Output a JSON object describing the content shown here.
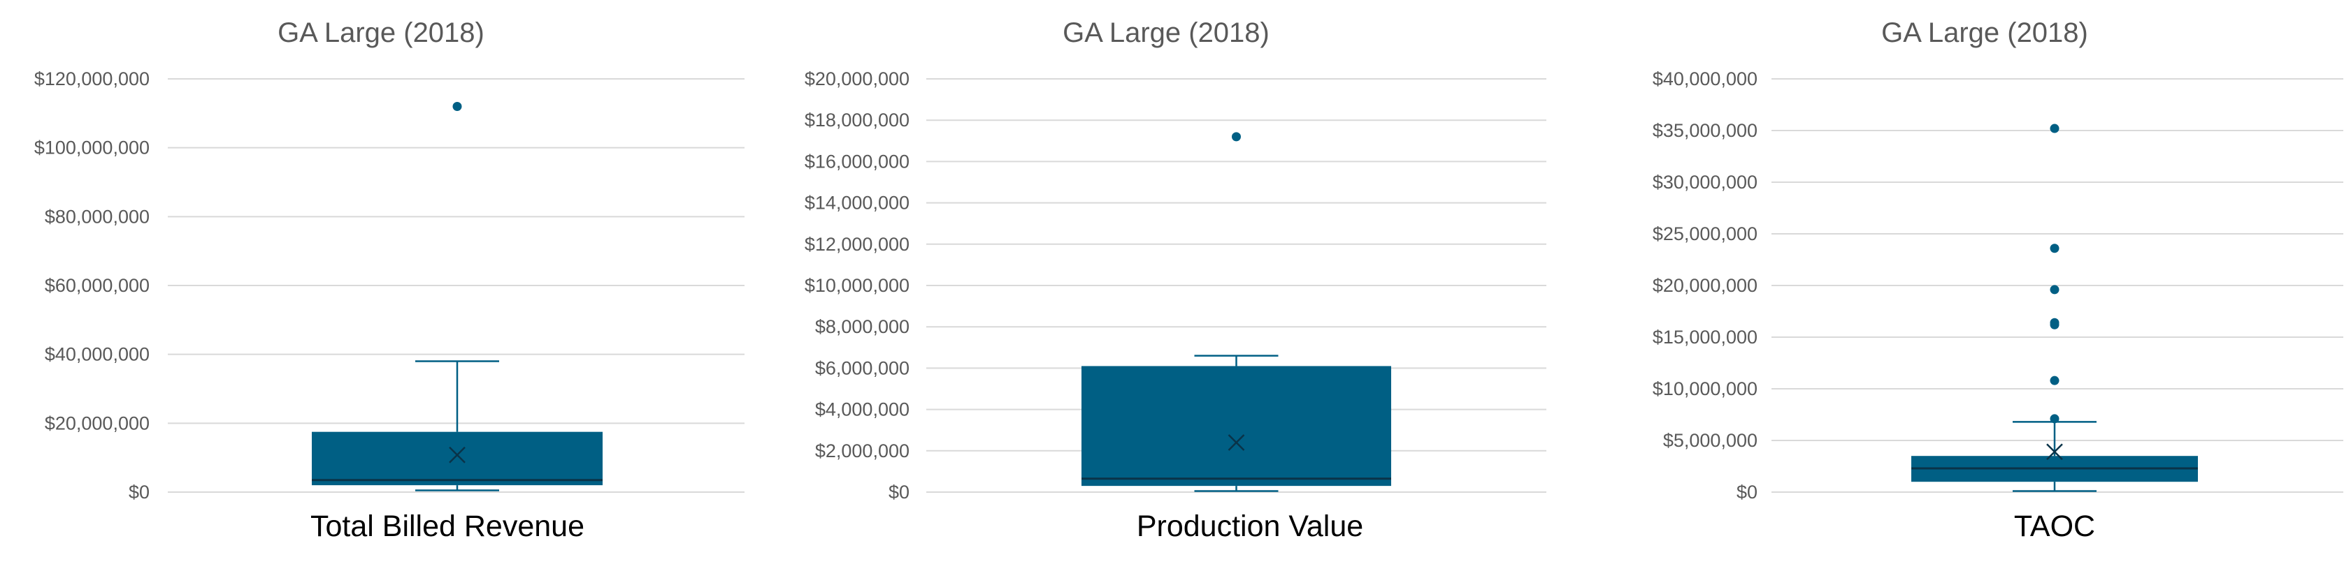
{
  "colors": {
    "box": "#005f84",
    "gridline": "#d9d9d9",
    "axis_text": "#595959",
    "title_text": "#595959",
    "category_text": "#000000",
    "background": "#ffffff"
  },
  "chart_data": [
    {
      "type": "boxplot",
      "title": "GA Large (2018)",
      "category": "Total Billed Revenue",
      "ylim": [
        0,
        120000000
      ],
      "yticks": [
        0,
        20000000,
        40000000,
        60000000,
        80000000,
        100000000,
        120000000
      ],
      "ytick_labels": [
        "$0",
        "$20,000,000",
        "$40,000,000",
        "$60,000,000",
        "$80,000,000",
        "$100,000,000",
        "$120,000,000"
      ],
      "whisker_low": 500000,
      "q1": 2000000,
      "median": 3500000,
      "q3": 17500000,
      "whisker_high": 38000000,
      "mean": 10800000,
      "outliers": [
        112000000
      ],
      "grid": true
    },
    {
      "type": "boxplot",
      "title": "GA Large (2018)",
      "category": "Production Value",
      "ylim": [
        0,
        20000000
      ],
      "yticks": [
        0,
        2000000,
        4000000,
        6000000,
        8000000,
        10000000,
        12000000,
        14000000,
        16000000,
        18000000,
        20000000
      ],
      "ytick_labels": [
        "$0",
        "$2,000,000",
        "$4,000,000",
        "$6,000,000",
        "$8,000,000",
        "$10,000,000",
        "$12,000,000",
        "$14,000,000",
        "$16,000,000",
        "$18,000,000",
        "$20,000,000"
      ],
      "whisker_low": 50000,
      "q1": 300000,
      "median": 650000,
      "q3": 6100000,
      "whisker_high": 6600000,
      "mean": 2400000,
      "outliers": [
        17200000
      ],
      "grid": true
    },
    {
      "type": "boxplot",
      "title": "GA Large (2018)",
      "category": "TAOC",
      "ylim": [
        0,
        40000000
      ],
      "yticks": [
        0,
        5000000,
        10000000,
        15000000,
        20000000,
        25000000,
        30000000,
        35000000,
        40000000
      ],
      "ytick_labels": [
        "$0",
        "$5,000,000",
        "$10,000,000",
        "$15,000,000",
        "$20,000,000",
        "$25,000,000",
        "$30,000,000",
        "$35,000,000",
        "$40,000,000"
      ],
      "whisker_low": 100000,
      "q1": 1000000,
      "median": 2300000,
      "q3": 3500000,
      "whisker_high": 6800000,
      "mean": 3900000,
      "outliers": [
        7100000,
        10800000,
        16200000,
        16400000,
        19600000,
        23600000,
        35200000
      ],
      "grid": true
    }
  ]
}
